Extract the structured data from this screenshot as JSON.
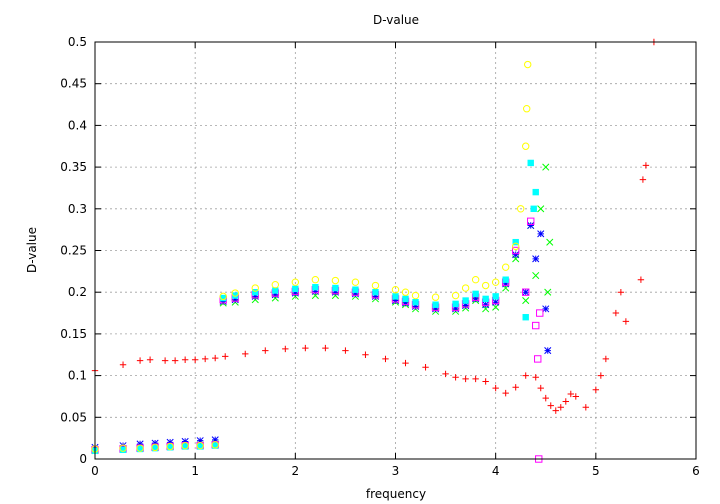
{
  "chart_data": {
    "type": "scatter",
    "title": "D-value",
    "xlabel": "frequency",
    "ylabel": "D-value",
    "xlim": [
      0,
      6
    ],
    "ylim": [
      0,
      0.5
    ],
    "x_ticks": [
      "0",
      "1",
      "2",
      "3",
      "4",
      "5",
      "6"
    ],
    "y_ticks": [
      "0",
      "0.05",
      "0.1",
      "0.15",
      "0.2",
      "0.25",
      "0.3",
      "0.35",
      "0.4",
      "0.45",
      "0.5"
    ],
    "grid": true,
    "legend": "none",
    "series": [
      {
        "color": "#ff0000",
        "marker": "plus",
        "x": [
          0.0,
          0.28,
          0.45,
          0.55,
          0.7,
          0.8,
          0.9,
          1.0,
          1.1,
          1.2,
          1.3,
          1.5,
          1.7,
          1.9,
          2.1,
          2.3,
          2.5,
          2.7,
          2.9,
          3.1,
          3.3,
          3.5,
          3.6,
          3.7,
          3.8,
          3.9,
          4.0,
          4.1,
          4.2,
          4.3,
          4.4,
          4.45,
          4.5,
          4.55,
          4.6,
          4.65,
          4.7,
          4.75,
          4.8,
          4.9,
          5.0,
          5.05,
          5.1,
          5.2,
          5.25,
          5.3,
          5.45,
          5.47,
          5.5,
          5.58
        ],
        "y": [
          0.106,
          0.113,
          0.118,
          0.119,
          0.118,
          0.118,
          0.119,
          0.119,
          0.12,
          0.121,
          0.123,
          0.126,
          0.13,
          0.132,
          0.133,
          0.133,
          0.13,
          0.125,
          0.12,
          0.115,
          0.11,
          0.102,
          0.098,
          0.096,
          0.096,
          0.093,
          0.085,
          0.079,
          0.086,
          0.1,
          0.098,
          0.085,
          0.073,
          0.064,
          0.058,
          0.062,
          0.069,
          0.078,
          0.075,
          0.062,
          0.083,
          0.1,
          0.12,
          0.175,
          0.2,
          0.165,
          0.215,
          0.335,
          0.352,
          0.5
        ]
      },
      {
        "color": "#00ff00",
        "marker": "cross",
        "x": [
          0.0,
          0.28,
          0.45,
          0.6,
          0.75,
          0.9,
          1.05,
          1.2,
          1.28,
          1.4,
          1.6,
          1.8,
          2.0,
          2.2,
          2.4,
          2.6,
          2.8,
          3.0,
          3.1,
          3.2,
          3.4,
          3.6,
          3.7,
          3.8,
          3.9,
          4.0,
          4.1,
          4.2,
          4.3,
          4.35,
          4.4,
          4.45,
          4.5,
          4.52,
          4.54
        ],
        "y": [
          0.01,
          0.012,
          0.013,
          0.014,
          0.015,
          0.016,
          0.017,
          0.018,
          0.187,
          0.188,
          0.191,
          0.193,
          0.195,
          0.196,
          0.196,
          0.195,
          0.192,
          0.188,
          0.185,
          0.18,
          0.177,
          0.177,
          0.181,
          0.19,
          0.18,
          0.182,
          0.205,
          0.24,
          0.19,
          0.28,
          0.22,
          0.3,
          0.35,
          0.2,
          0.26
        ]
      },
      {
        "color": "#0000ff",
        "marker": "star",
        "x": [
          0.0,
          0.28,
          0.45,
          0.6,
          0.75,
          0.9,
          1.05,
          1.2,
          1.28,
          1.4,
          1.6,
          1.8,
          2.0,
          2.2,
          2.4,
          2.6,
          2.8,
          3.0,
          3.1,
          3.2,
          3.4,
          3.6,
          3.7,
          3.8,
          3.9,
          4.0,
          4.1,
          4.2,
          4.3,
          4.35,
          4.4,
          4.45,
          4.5,
          4.52
        ],
        "y": [
          0.014,
          0.016,
          0.018,
          0.019,
          0.02,
          0.021,
          0.022,
          0.023,
          0.189,
          0.191,
          0.195,
          0.197,
          0.199,
          0.201,
          0.2,
          0.198,
          0.195,
          0.19,
          0.187,
          0.183,
          0.18,
          0.18,
          0.184,
          0.192,
          0.185,
          0.188,
          0.21,
          0.245,
          0.2,
          0.28,
          0.24,
          0.27,
          0.18,
          0.13
        ]
      },
      {
        "color": "#ff00ff",
        "marker": "square",
        "x": [
          0.0,
          0.28,
          0.45,
          0.6,
          0.75,
          0.9,
          1.05,
          1.2,
          1.28,
          1.4,
          1.6,
          1.8,
          2.0,
          2.2,
          2.4,
          2.6,
          2.8,
          3.0,
          3.1,
          3.2,
          3.4,
          3.6,
          3.7,
          3.8,
          3.9,
          4.0,
          4.1,
          4.2,
          4.3,
          4.35,
          4.4,
          4.42,
          4.43,
          4.44
        ],
        "y": [
          0.011,
          0.012,
          0.013,
          0.014,
          0.015,
          0.016,
          0.016,
          0.017,
          0.191,
          0.193,
          0.197,
          0.199,
          0.201,
          0.203,
          0.202,
          0.2,
          0.197,
          0.192,
          0.189,
          0.185,
          0.182,
          0.182,
          0.186,
          0.194,
          0.188,
          0.19,
          0.212,
          0.25,
          0.2,
          0.285,
          0.16,
          0.12,
          0.0,
          0.175
        ]
      },
      {
        "color": "#00ffff",
        "marker": "filled-square",
        "x": [
          0.0,
          0.28,
          0.45,
          0.6,
          0.75,
          0.9,
          1.05,
          1.2,
          1.28,
          1.4,
          1.6,
          1.8,
          2.0,
          2.2,
          2.4,
          2.6,
          2.8,
          3.0,
          3.1,
          3.2,
          3.4,
          3.6,
          3.7,
          3.8,
          3.9,
          4.0,
          4.1,
          4.2,
          4.3,
          4.35,
          4.38,
          4.4
        ],
        "y": [
          0.01,
          0.011,
          0.012,
          0.013,
          0.014,
          0.015,
          0.015,
          0.016,
          0.193,
          0.196,
          0.2,
          0.202,
          0.204,
          0.206,
          0.205,
          0.203,
          0.2,
          0.195,
          0.192,
          0.188,
          0.185,
          0.186,
          0.19,
          0.198,
          0.192,
          0.195,
          0.215,
          0.26,
          0.17,
          0.355,
          0.3,
          0.32
        ]
      },
      {
        "color": "#ffff00",
        "marker": "circle",
        "x": [
          0.0,
          0.28,
          0.45,
          0.6,
          0.75,
          0.9,
          1.05,
          1.2,
          1.28,
          1.4,
          1.6,
          1.8,
          2.0,
          2.2,
          2.4,
          2.6,
          2.8,
          3.0,
          3.1,
          3.2,
          3.4,
          3.6,
          3.7,
          3.8,
          3.9,
          4.0,
          4.1,
          4.2,
          4.25,
          4.3,
          4.31,
          4.32
        ],
        "y": [
          0.012,
          0.013,
          0.013,
          0.014,
          0.015,
          0.016,
          0.016,
          0.017,
          0.195,
          0.199,
          0.205,
          0.209,
          0.212,
          0.215,
          0.214,
          0.212,
          0.208,
          0.203,
          0.2,
          0.196,
          0.194,
          0.196,
          0.205,
          0.215,
          0.208,
          0.212,
          0.23,
          0.255,
          0.3,
          0.375,
          0.42,
          0.473
        ]
      }
    ]
  }
}
